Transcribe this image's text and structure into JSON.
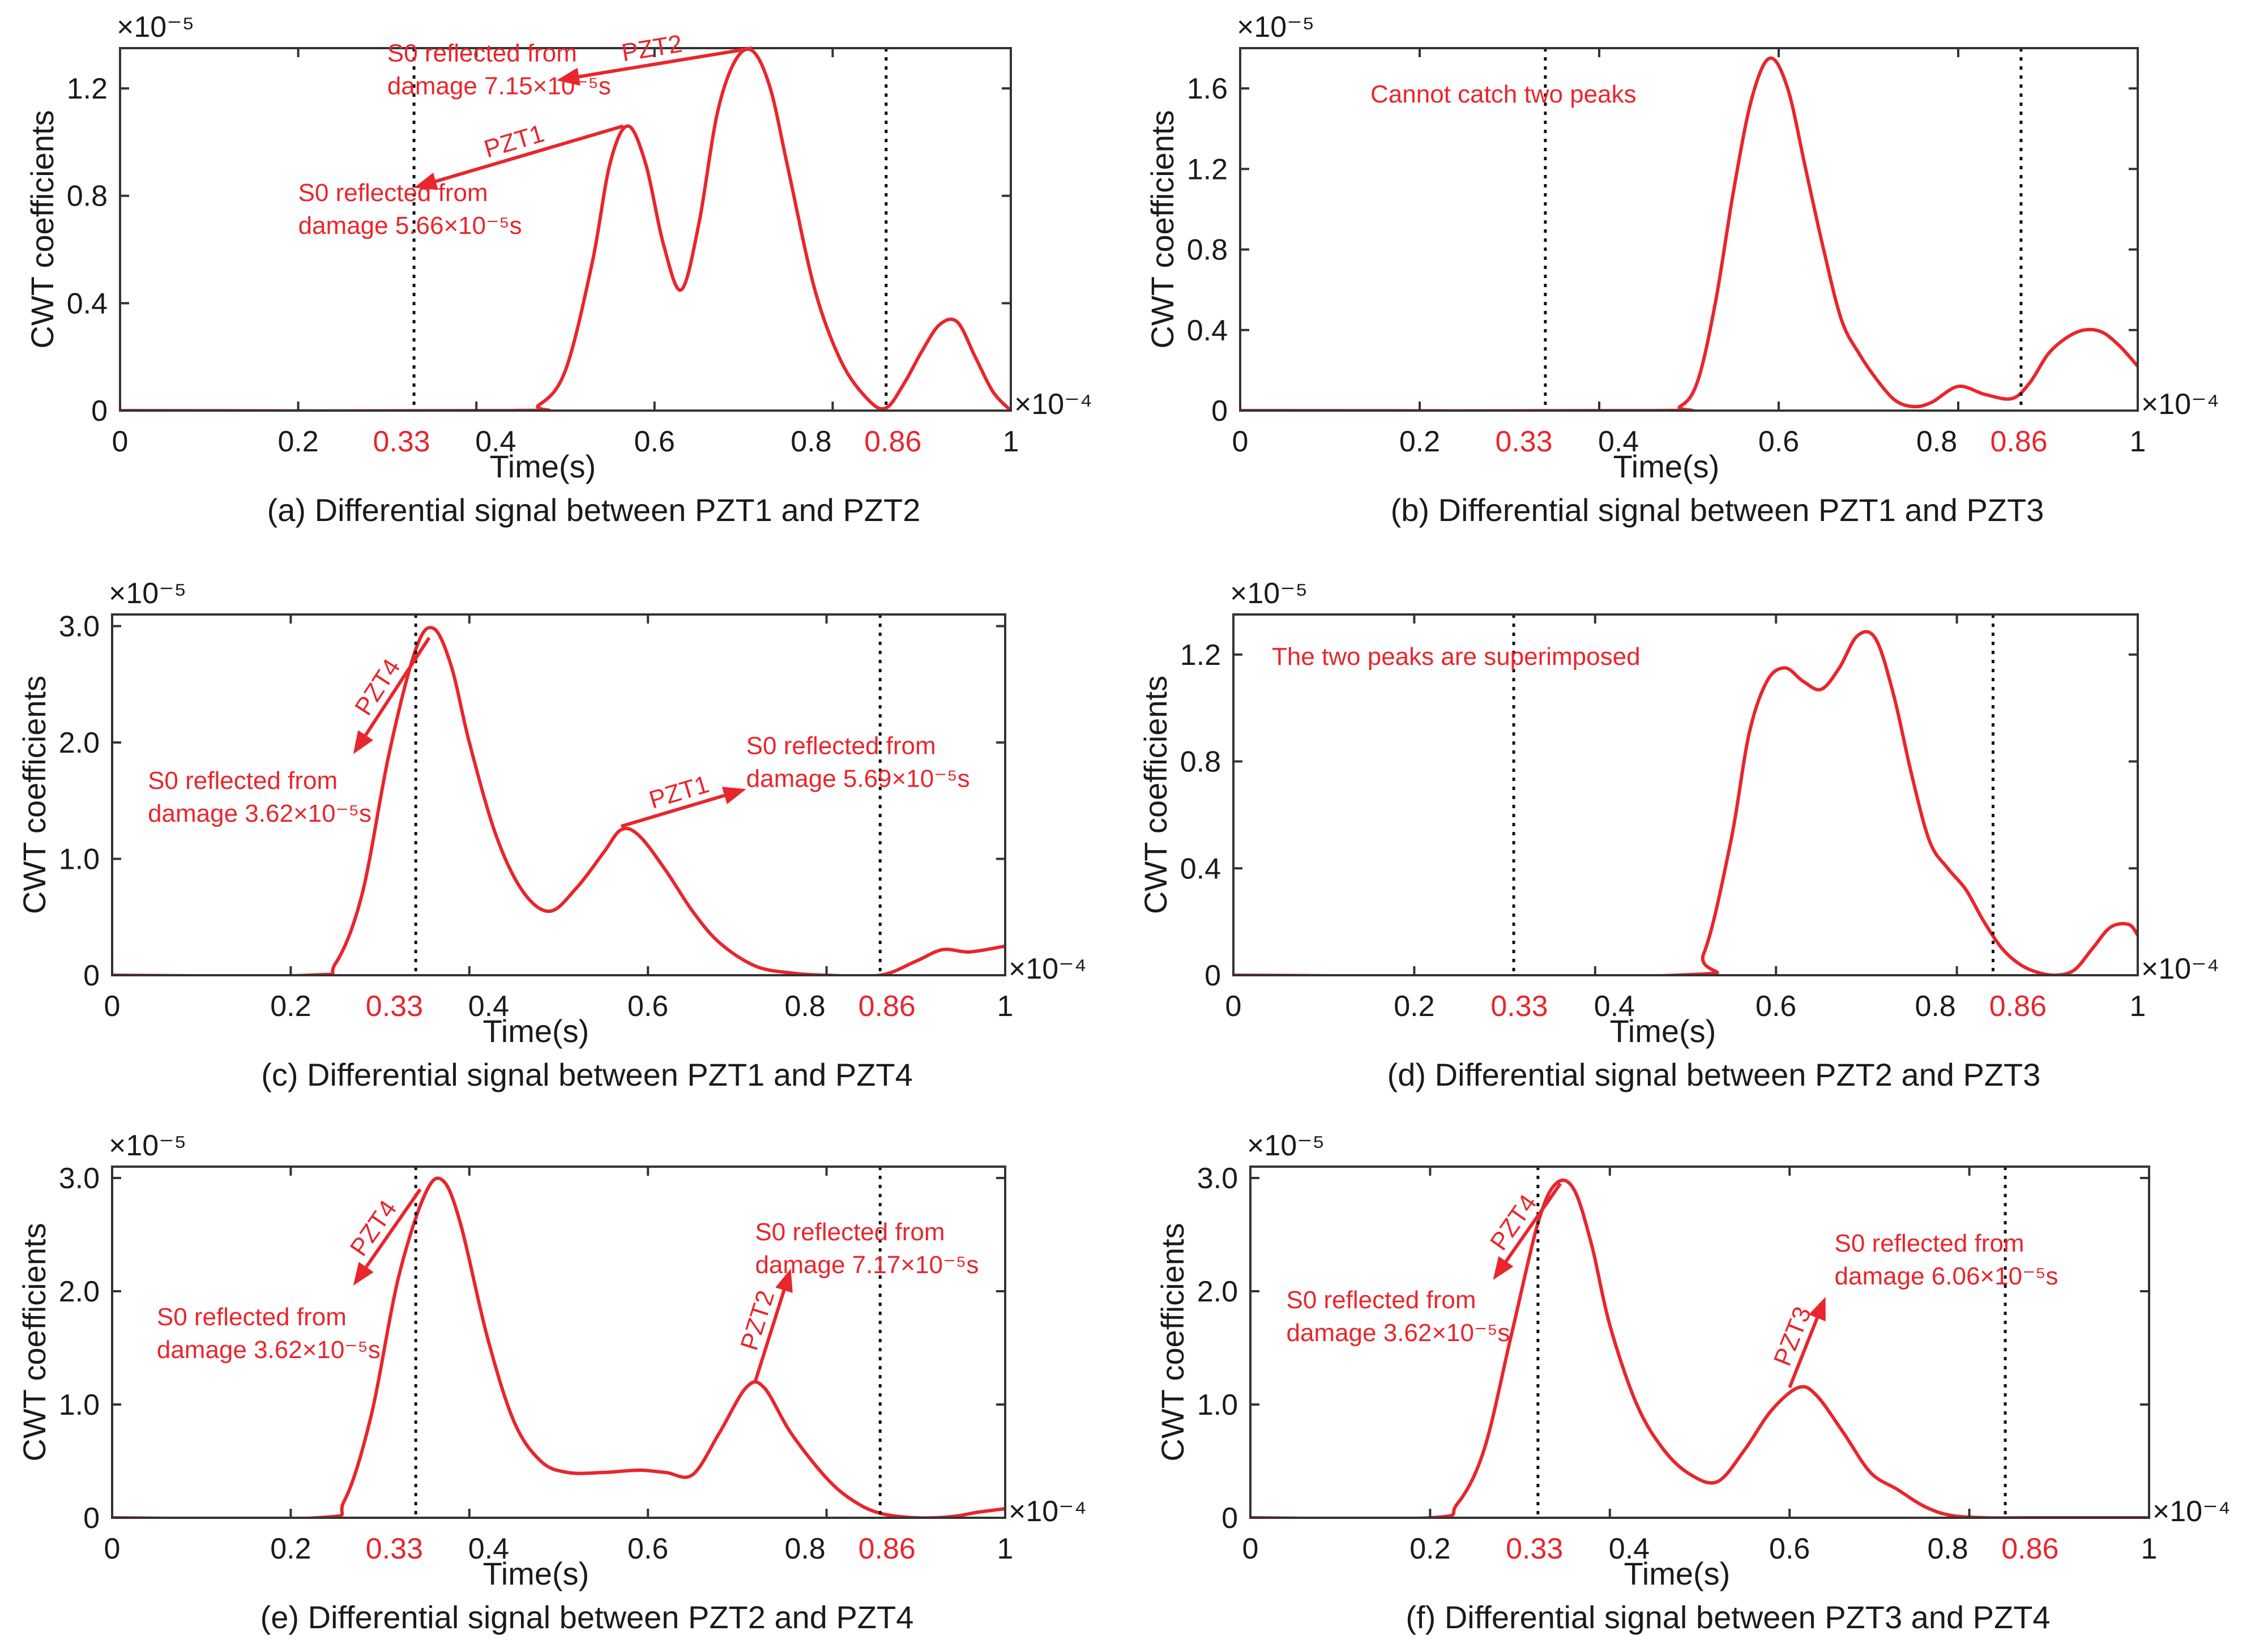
{
  "chart_data": [
    {
      "id": "a",
      "type": "line",
      "caption": "(a) Differential signal between PZT1 and PZT2",
      "xlabel": "Time(s)",
      "ylabel": "CWT coefficients",
      "x_exponent": "×10⁻⁴",
      "y_exponent": "×10⁻⁵",
      "xlim": [
        0,
        1
      ],
      "ylim": [
        0,
        1.35
      ],
      "xticks": [
        "0",
        "0.2",
        "0.4",
        "0.6",
        "0.8",
        "1"
      ],
      "xtick_values": [
        0,
        0.2,
        0.4,
        0.6,
        0.8,
        1
      ],
      "red_xticks": [
        "0.33",
        "0.86"
      ],
      "red_xtick_values": [
        0.33,
        0.86
      ],
      "yticks": [
        "0",
        "0.4",
        "0.8",
        "1.2"
      ],
      "ytick_values": [
        0,
        0.4,
        0.8,
        1.2
      ],
      "vlines": [
        0.33,
        0.86
      ],
      "series": [
        {
          "name": "CWT",
          "color": "#e8262c",
          "x": [
            0,
            0.44,
            0.47,
            0.5,
            0.53,
            0.55,
            0.57,
            0.59,
            0.61,
            0.63,
            0.65,
            0.67,
            0.69,
            0.71,
            0.73,
            0.75,
            0.78,
            0.81,
            0.84,
            0.86,
            0.88,
            0.9,
            0.92,
            0.94,
            0.96,
            0.98,
            1.0
          ],
          "values": [
            0,
            0,
            0.02,
            0.15,
            0.55,
            0.92,
            1.06,
            0.92,
            0.62,
            0.45,
            0.7,
            1.1,
            1.3,
            1.34,
            1.2,
            0.9,
            0.45,
            0.18,
            0.04,
            0.01,
            0.1,
            0.22,
            0.32,
            0.33,
            0.2,
            0.07,
            0.0
          ]
        }
      ],
      "annotations": [
        {
          "label": "PZT2",
          "lines": [
            "S0 reflected from",
            "damage 7.15×10⁻⁵s"
          ],
          "from": [
            0.71,
            1.35
          ],
          "to": [
            0.49,
            1.23
          ],
          "text_at": [
            0.3,
            1.3
          ]
        },
        {
          "label": "PZT1",
          "lines": [
            "S0 reflected from",
            "damage 5.66×10⁻⁵s"
          ],
          "from": [
            0.565,
            1.06
          ],
          "to": [
            0.33,
            0.83
          ],
          "text_at": [
            0.2,
            0.78
          ]
        }
      ],
      "note": ""
    },
    {
      "id": "b",
      "type": "line",
      "caption": "(b) Differential signal between PZT1 and PZT3",
      "xlabel": "Time(s)",
      "ylabel": "CWT coefficients",
      "x_exponent": "×10⁻⁴",
      "y_exponent": "×10⁻⁵",
      "xlim": [
        0,
        1
      ],
      "ylim": [
        0,
        1.8
      ],
      "xticks": [
        "0",
        "0.2",
        "0.4",
        "0.6",
        "0.8",
        "1"
      ],
      "xtick_values": [
        0,
        0.2,
        0.4,
        0.6,
        0.8,
        1
      ],
      "red_xticks": [
        "0.33",
        "0.86"
      ],
      "red_xtick_values": [
        0.33,
        0.86
      ],
      "yticks": [
        "0",
        "0.4",
        "0.8",
        "1.2",
        "1.6"
      ],
      "ytick_values": [
        0,
        0.4,
        0.8,
        1.2,
        1.6
      ],
      "vlines": [
        0.34,
        0.87
      ],
      "series": [
        {
          "name": "CWT",
          "color": "#e8262c",
          "x": [
            0,
            0.46,
            0.49,
            0.51,
            0.53,
            0.55,
            0.57,
            0.59,
            0.61,
            0.63,
            0.65,
            0.67,
            0.69,
            0.71,
            0.73,
            0.75,
            0.77,
            0.8,
            0.83,
            0.86,
            0.88,
            0.9,
            0.92,
            0.94,
            0.96,
            0.98,
            1.0
          ],
          "values": [
            0,
            0,
            0.02,
            0.15,
            0.55,
            1.1,
            1.55,
            1.75,
            1.6,
            1.2,
            0.8,
            0.45,
            0.28,
            0.15,
            0.05,
            0.02,
            0.04,
            0.12,
            0.08,
            0.06,
            0.14,
            0.28,
            0.36,
            0.4,
            0.39,
            0.32,
            0.22
          ]
        }
      ],
      "annotations": [],
      "note": "Cannot catch two peaks"
    },
    {
      "id": "c",
      "type": "line",
      "caption": "(c) Differential signal between PZT1 and PZT4",
      "xlabel": "Time(s)",
      "ylabel": "CWT coefficients",
      "x_exponent": "×10⁻⁴",
      "y_exponent": "×10⁻⁵",
      "xlim": [
        0,
        1
      ],
      "ylim": [
        0,
        3.1
      ],
      "xticks": [
        "0",
        "0.2",
        "0.4",
        "0.6",
        "0.8",
        "1"
      ],
      "xtick_values": [
        0,
        0.2,
        0.4,
        0.6,
        0.8,
        1
      ],
      "red_xticks": [
        "0.33",
        "0.86"
      ],
      "red_xtick_values": [
        0.33,
        0.86
      ],
      "yticks": [
        "0",
        "1.0",
        "2.0",
        "3.0"
      ],
      "ytick_values": [
        0,
        1,
        2,
        3
      ],
      "vlines": [
        0.34,
        0.86
      ],
      "series": [
        {
          "name": "CWT",
          "color": "#e8262c",
          "x": [
            0,
            0.22,
            0.25,
            0.28,
            0.31,
            0.34,
            0.36,
            0.38,
            0.4,
            0.43,
            0.46,
            0.49,
            0.52,
            0.55,
            0.57,
            0.59,
            0.62,
            0.65,
            0.68,
            0.72,
            0.76,
            0.8,
            0.86,
            0.9,
            0.93,
            0.96,
            1.0
          ],
          "values": [
            0,
            0,
            0.1,
            0.7,
            1.9,
            2.8,
            2.98,
            2.65,
            2.0,
            1.2,
            0.72,
            0.55,
            0.75,
            1.05,
            1.25,
            1.2,
            0.9,
            0.55,
            0.28,
            0.08,
            0.02,
            0.0,
            0.0,
            0.12,
            0.22,
            0.2,
            0.25
          ]
        }
      ],
      "annotations": [
        {
          "label": "PZT4",
          "lines": [
            "S0 reflected from",
            "damage 3.62×10⁻⁵s"
          ],
          "from": [
            0.355,
            2.9
          ],
          "to": [
            0.27,
            1.9
          ],
          "text_at": [
            0.04,
            1.6
          ]
        },
        {
          "label": "PZT1",
          "lines": [
            "S0 reflected from",
            "damage 5.69×10⁻⁵s"
          ],
          "from": [
            0.57,
            1.28
          ],
          "to": [
            0.71,
            1.6
          ],
          "text_at": [
            0.71,
            1.9
          ]
        }
      ],
      "note": ""
    },
    {
      "id": "d",
      "type": "line",
      "caption": "(d) Differential signal between PZT2 and PZT3",
      "xlabel": "Time(s)",
      "ylabel": "CWT coefficients",
      "x_exponent": "×10⁻⁴",
      "y_exponent": "×10⁻⁵",
      "xlim": [
        0,
        1
      ],
      "ylim": [
        0,
        1.35
      ],
      "xticks": [
        "0",
        "0.2",
        "0.4",
        "0.6",
        "0.8",
        "1"
      ],
      "xtick_values": [
        0,
        0.2,
        0.4,
        0.6,
        0.8,
        1
      ],
      "red_xticks": [
        "0.33",
        "0.86"
      ],
      "red_xtick_values": [
        0.33,
        0.86
      ],
      "yticks": [
        "0",
        "0.4",
        "0.8",
        "1.2"
      ],
      "ytick_values": [
        0,
        0.4,
        0.8,
        1.2
      ],
      "vlines": [
        0.31,
        0.84
      ],
      "series": [
        {
          "name": "CWT",
          "color": "#e8262c",
          "x": [
            0,
            0.49,
            0.52,
            0.55,
            0.57,
            0.59,
            0.61,
            0.63,
            0.65,
            0.67,
            0.69,
            0.71,
            0.73,
            0.75,
            0.77,
            0.79,
            0.81,
            0.83,
            0.85,
            0.87,
            0.89,
            0.91,
            0.93,
            0.95,
            0.97,
            0.99,
            1.0
          ],
          "values": [
            0,
            0,
            0.08,
            0.5,
            0.9,
            1.1,
            1.15,
            1.1,
            1.07,
            1.15,
            1.27,
            1.26,
            1.05,
            0.75,
            0.5,
            0.4,
            0.32,
            0.2,
            0.1,
            0.04,
            0.01,
            0.0,
            0.02,
            0.1,
            0.18,
            0.19,
            0.15
          ]
        }
      ],
      "annotations": [],
      "note": "The two peaks are superimposed"
    },
    {
      "id": "e",
      "type": "line",
      "caption": "(e) Differential signal between PZT2 and PZT4",
      "xlabel": "Time(s)",
      "ylabel": "CWT coefficients",
      "x_exponent": "×10⁻⁴",
      "y_exponent": "×10⁻⁵",
      "xlim": [
        0,
        1
      ],
      "ylim": [
        0,
        3.1
      ],
      "xticks": [
        "0",
        "0.2",
        "0.4",
        "0.6",
        "0.8",
        "1"
      ],
      "xtick_values": [
        0,
        0.2,
        0.4,
        0.6,
        0.8,
        1
      ],
      "red_xticks": [
        "0.33",
        "0.86"
      ],
      "red_xtick_values": [
        0.33,
        0.86
      ],
      "yticks": [
        "0",
        "1.0",
        "2.0",
        "3.0"
      ],
      "ytick_values": [
        0,
        1,
        2,
        3
      ],
      "vlines": [
        0.34,
        0.86
      ],
      "series": [
        {
          "name": "CWT",
          "color": "#e8262c",
          "x": [
            0,
            0.23,
            0.26,
            0.29,
            0.32,
            0.35,
            0.37,
            0.39,
            0.42,
            0.45,
            0.48,
            0.51,
            0.55,
            0.59,
            0.62,
            0.65,
            0.68,
            0.71,
            0.73,
            0.76,
            0.8,
            0.83,
            0.86,
            0.9,
            0.94,
            0.97,
            1.0
          ],
          "values": [
            0,
            0,
            0.15,
            0.9,
            2.1,
            2.85,
            2.98,
            2.6,
            1.6,
            0.85,
            0.5,
            0.4,
            0.4,
            0.42,
            0.4,
            0.38,
            0.75,
            1.15,
            1.15,
            0.75,
            0.35,
            0.15,
            0.04,
            0.0,
            0.01,
            0.05,
            0.08
          ]
        }
      ],
      "annotations": [
        {
          "label": "PZT4",
          "lines": [
            "S0 reflected from",
            "damage 3.62×10⁻⁵s"
          ],
          "from": [
            0.345,
            2.9
          ],
          "to": [
            0.27,
            2.05
          ],
          "text_at": [
            0.05,
            1.7
          ]
        },
        {
          "label": "PZT2",
          "lines": [
            "S0 reflected from",
            "damage 7.17×10⁻⁵s"
          ],
          "from": [
            0.72,
            1.2
          ],
          "to": [
            0.76,
            2.2
          ],
          "text_at": [
            0.72,
            2.45
          ]
        }
      ],
      "note": ""
    },
    {
      "id": "f",
      "type": "line",
      "caption": "(f) Differential signal between PZT3 and PZT4",
      "xlabel": "Time(s)",
      "ylabel": "CWT coefficients",
      "x_exponent": "×10⁻⁴",
      "y_exponent": "×10⁻⁵",
      "xlim": [
        0,
        1
      ],
      "ylim": [
        0,
        3.1
      ],
      "xticks": [
        "0",
        "0.2",
        "0.4",
        "0.6",
        "0.8",
        "1"
      ],
      "xtick_values": [
        0,
        0.2,
        0.4,
        0.6,
        0.8,
        1
      ],
      "red_xticks": [
        "0.33",
        "0.86"
      ],
      "red_xtick_values": [
        0.33,
        0.86
      ],
      "yticks": [
        "0",
        "1.0",
        "2.0",
        "3.0"
      ],
      "ytick_values": [
        0,
        1,
        2,
        3
      ],
      "vlines": [
        0.32,
        0.84
      ],
      "series": [
        {
          "name": "CWT",
          "color": "#e8262c",
          "x": [
            0,
            0.2,
            0.23,
            0.26,
            0.29,
            0.32,
            0.34,
            0.36,
            0.38,
            0.4,
            0.43,
            0.46,
            0.49,
            0.52,
            0.55,
            0.58,
            0.61,
            0.63,
            0.66,
            0.69,
            0.72,
            0.75,
            0.78,
            0.82,
            0.86,
            0.9,
            1.0
          ],
          "values": [
            0,
            0,
            0.12,
            0.6,
            1.6,
            2.6,
            2.95,
            2.9,
            2.4,
            1.7,
            1.0,
            0.6,
            0.38,
            0.32,
            0.6,
            0.95,
            1.15,
            1.08,
            0.75,
            0.4,
            0.25,
            0.1,
            0.02,
            0.0,
            0.0,
            0.0,
            0.0
          ]
        }
      ],
      "annotations": [
        {
          "label": "PZT4",
          "lines": [
            "S0 reflected from",
            "damage 3.62×10⁻⁵s"
          ],
          "from": [
            0.345,
            2.95
          ],
          "to": [
            0.27,
            2.1
          ],
          "text_at": [
            0.04,
            1.85
          ]
        },
        {
          "label": "PZT3",
          "lines": [
            "S0 reflected from",
            "damage 6.06×10⁻⁵s"
          ],
          "from": [
            0.6,
            1.15
          ],
          "to": [
            0.64,
            1.95
          ],
          "text_at": [
            0.65,
            2.35
          ]
        }
      ],
      "note": ""
    }
  ]
}
